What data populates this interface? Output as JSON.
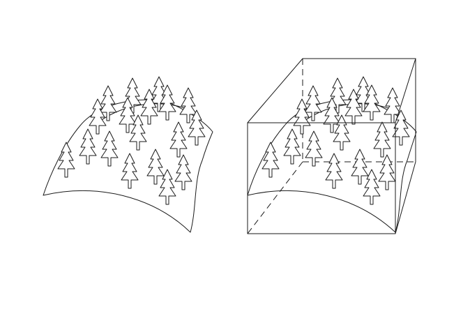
{
  "figure": {
    "panels": [
      {
        "id": "left",
        "content": "forested-surface"
      },
      {
        "id": "right",
        "content": "forested-surface-in-box"
      }
    ],
    "colors": {
      "ink": "#1a1a1a",
      "background": "#ffffff"
    },
    "icons": {
      "tree": "conifer-tree-icon"
    }
  }
}
